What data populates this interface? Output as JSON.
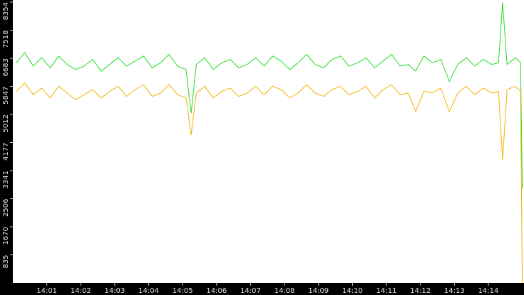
{
  "chart_data": {
    "type": "line",
    "x": [
      840.1,
      840.35,
      840.6,
      840.85,
      841.1,
      841.35,
      841.6,
      841.85,
      842.1,
      842.35,
      842.6,
      842.85,
      843.1,
      843.35,
      843.6,
      843.85,
      844.1,
      844.35,
      844.6,
      844.85,
      845.1,
      845.25,
      845.4,
      845.65,
      845.9,
      846.15,
      846.4,
      846.65,
      846.9,
      847.15,
      847.4,
      847.65,
      847.9,
      848.15,
      848.4,
      848.65,
      848.9,
      849.15,
      849.4,
      849.65,
      849.9,
      850.15,
      850.4,
      850.65,
      850.9,
      851.15,
      851.4,
      851.65,
      851.86,
      852.1,
      852.35,
      852.6,
      852.85,
      853.1,
      853.35,
      853.6,
      853.85,
      854.1,
      854.3,
      854.42,
      854.55,
      854.8,
      854.95,
      855.0
    ],
    "series": [
      {
        "color": "#22dd22",
        "values": [
          6550,
          6850,
          6450,
          6700,
          6400,
          6750,
          6500,
          6350,
          6450,
          6650,
          6300,
          6500,
          6700,
          6450,
          6600,
          6750,
          6400,
          6550,
          6800,
          6450,
          6350,
          5050,
          6500,
          6700,
          6350,
          6550,
          6650,
          6400,
          6500,
          6700,
          6450,
          6750,
          6600,
          6350,
          6550,
          6800,
          6500,
          6400,
          6650,
          6750,
          6450,
          6550,
          6700,
          6400,
          6600,
          6800,
          6450,
          6500,
          6300,
          6750,
          6550,
          6650,
          6000,
          6500,
          6700,
          6450,
          6650,
          6500,
          6550,
          8354,
          6500,
          6700,
          6550,
          2800
        ]
      },
      {
        "color": "#f0b400",
        "values": [
          5700,
          5950,
          5600,
          5800,
          5500,
          5850,
          5650,
          5450,
          5600,
          5750,
          5500,
          5700,
          5850,
          5550,
          5750,
          5900,
          5550,
          5650,
          5900,
          5600,
          5500,
          4400,
          5650,
          5850,
          5500,
          5700,
          5800,
          5550,
          5650,
          5850,
          5600,
          5850,
          5750,
          5500,
          5650,
          5900,
          5650,
          5550,
          5750,
          5850,
          5600,
          5700,
          5850,
          5500,
          5750,
          5900,
          5600,
          5650,
          5100,
          5700,
          5650,
          5800,
          5100,
          5650,
          5850,
          5600,
          5800,
          5650,
          5700,
          3650,
          5750,
          5850,
          5700,
          0
        ]
      }
    ],
    "xlim": [
      840,
      855.05
    ],
    "xticks": [
      {
        "value": 841,
        "label": "14:01"
      },
      {
        "value": 842,
        "label": "14:02"
      },
      {
        "value": 843,
        "label": "14:03"
      },
      {
        "value": 844,
        "label": "14:04"
      },
      {
        "value": 845,
        "label": "14:05"
      },
      {
        "value": 846,
        "label": "14:06"
      },
      {
        "value": 847,
        "label": "14:07"
      },
      {
        "value": 848,
        "label": "14:08"
      },
      {
        "value": 849,
        "label": "14:09"
      },
      {
        "value": 850,
        "label": "14:10"
      },
      {
        "value": 851,
        "label": "14:11"
      },
      {
        "value": 852,
        "label": "14:12"
      },
      {
        "value": 853,
        "label": "14:13"
      },
      {
        "value": 854,
        "label": "14:14"
      }
    ],
    "ylim": [
      0,
      8354
    ],
    "yticks": [
      835,
      1670,
      2506,
      3341,
      4177,
      5012,
      5847,
      6683,
      7518,
      8354
    ]
  }
}
